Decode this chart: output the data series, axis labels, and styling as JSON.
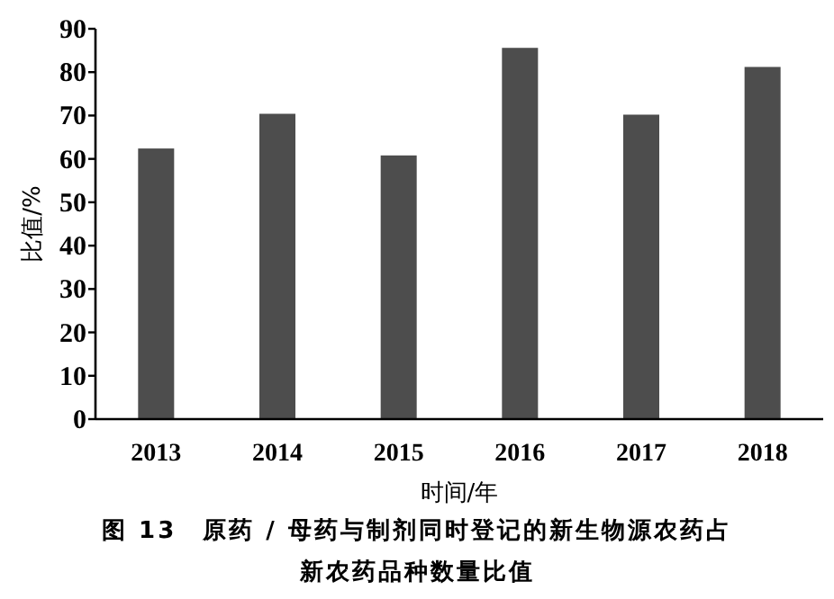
{
  "chart_data": {
    "type": "bar",
    "title": "图 13　原药 / 母药与制剂同时登记的新生物源农药占新农药品种数量比值",
    "xlabel": "时间/年",
    "ylabel": "比值/%",
    "categories": [
      "2013",
      "2014",
      "2015",
      "2016",
      "2017",
      "2018"
    ],
    "values": [
      62.4,
      70.4,
      60.8,
      85.6,
      70.2,
      81.2
    ],
    "color": "#4d4d4d",
    "ylim": [
      0,
      90
    ],
    "yticks": [
      0,
      10,
      20,
      30,
      40,
      50,
      60,
      70,
      80,
      90
    ]
  }
}
